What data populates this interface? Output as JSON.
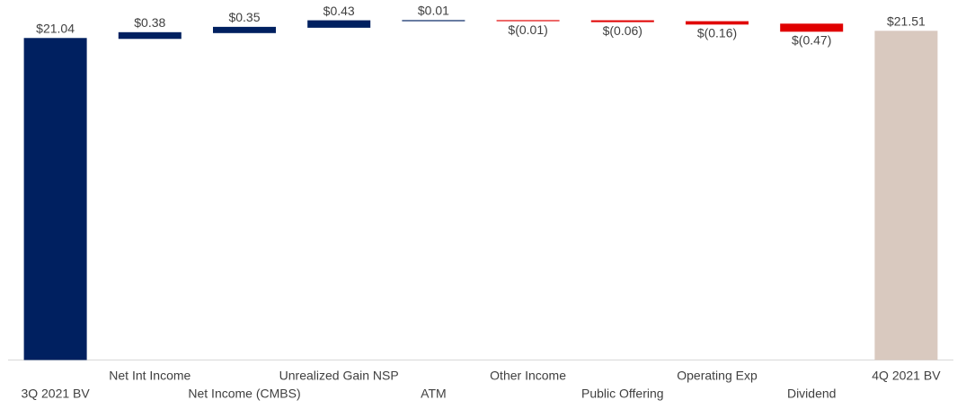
{
  "chart_data": {
    "type": "waterfall",
    "categories": [
      "3Q 2021 BV",
      "Net Int Income",
      "Net Income (CMBS)",
      "Unrealized Gain NSP",
      "ATM",
      "Other Income",
      "Public Offering",
      "Operating Exp",
      "Dividend",
      "4Q 2021 BV"
    ],
    "values": [
      21.04,
      0.38,
      0.35,
      0.43,
      0.01,
      -0.01,
      -0.06,
      -0.16,
      -0.47,
      21.51
    ],
    "value_labels": [
      "$21.04",
      "$0.38",
      "$0.35",
      "$0.43",
      "$0.01",
      "$(0.01)",
      "$(0.06)",
      "$(0.16)",
      "$(0.47)",
      "$21.51"
    ],
    "colors": [
      "#002060",
      "#002060",
      "#002060",
      "#002060",
      "#002060",
      "#e00000",
      "#e00000",
      "#e00000",
      "#e00000",
      "#d9c9bf"
    ],
    "ylim": [
      0,
      23.5
    ]
  }
}
